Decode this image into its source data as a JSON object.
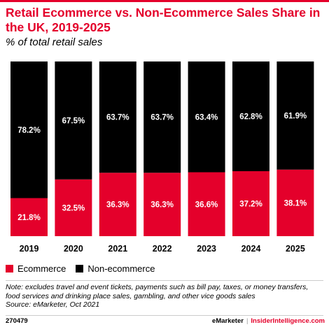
{
  "header": {
    "title": "Retail Ecommerce vs. Non-Ecommerce Sales Share in the UK, 2019-2025",
    "subtitle": "% of total retail sales"
  },
  "colors": {
    "accent": "#e4002b",
    "ecommerce": "#e4002b",
    "non_ecommerce": "#000000"
  },
  "legend": {
    "ecommerce_label": "Ecommerce",
    "non_ecommerce_label": "Non-ecommerce"
  },
  "chart_data": {
    "type": "bar",
    "stacked": true,
    "categories": [
      "2019",
      "2020",
      "2021",
      "2022",
      "2023",
      "2024",
      "2025"
    ],
    "series": [
      {
        "name": "Ecommerce",
        "values": [
          21.8,
          32.5,
          36.3,
          36.3,
          36.6,
          37.2,
          38.1
        ],
        "labels": [
          "21.8%",
          "32.5%",
          "36.3%",
          "36.3%",
          "36.6%",
          "37.2%",
          "38.1%"
        ]
      },
      {
        "name": "Non-ecommerce",
        "values": [
          78.2,
          67.5,
          63.7,
          63.7,
          63.4,
          62.8,
          61.9
        ],
        "labels": [
          "78.2%",
          "67.5%",
          "63.7%",
          "63.7%",
          "63.4%",
          "62.8%",
          "61.9%"
        ]
      }
    ],
    "ylim": [
      0,
      100
    ],
    "grid": false,
    "legend_position": "bottom-left"
  },
  "note": {
    "line1": "Note: excludes travel and event tickets, payments such as bill pay, taxes, or money transfers,",
    "line2": "food services and drinking place sales, gambling, and other vice goods sales",
    "source": "Source: eMarketer, Oct 2021"
  },
  "footer": {
    "id": "270479",
    "brand": "eMarketer",
    "separator": "|",
    "site": "InsiderIntelligence.com"
  }
}
